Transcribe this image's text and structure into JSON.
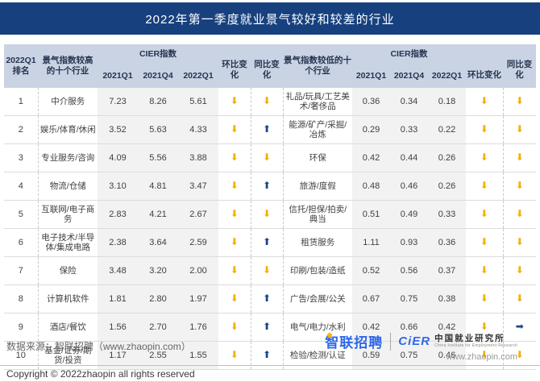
{
  "title": "2022年第一季度就业景气较好和较差的行业",
  "chart_data": {
    "type": "table",
    "title": "2022年第一季度就业景气较好和较差的行业",
    "columns": {
      "rank": "2022Q1排名",
      "high_group": "景气指数较高的十个行业",
      "low_group": "景气指数较低的十个行业",
      "cier": "CIER指数",
      "quarters": [
        "2021Q1",
        "2021Q4",
        "2022Q1"
      ],
      "qoq": "环比变化",
      "yoy": "同比变化"
    },
    "rows": [
      {
        "rank": "1",
        "high": {
          "industry": "中介服务",
          "values": [
            "7.23",
            "8.26",
            "5.61"
          ],
          "qoq": "down",
          "yoy": "down"
        },
        "low": {
          "industry": "礼品/玩具/工艺美术/奢侈品",
          "values": [
            "0.36",
            "0.34",
            "0.18"
          ],
          "qoq": "down",
          "yoy": "down"
        }
      },
      {
        "rank": "2",
        "high": {
          "industry": "娱乐/体育/休闲",
          "values": [
            "3.52",
            "5.63",
            "4.33"
          ],
          "qoq": "down",
          "yoy": "up"
        },
        "low": {
          "industry": "能源/矿产/采掘/冶炼",
          "values": [
            "0.29",
            "0.33",
            "0.22"
          ],
          "qoq": "down",
          "yoy": "down"
        }
      },
      {
        "rank": "3",
        "high": {
          "industry": "专业服务/咨询",
          "values": [
            "4.09",
            "5.56",
            "3.88"
          ],
          "qoq": "down",
          "yoy": "down"
        },
        "low": {
          "industry": "环保",
          "values": [
            "0.42",
            "0.44",
            "0.26"
          ],
          "qoq": "down",
          "yoy": "down"
        }
      },
      {
        "rank": "4",
        "high": {
          "industry": "物流/仓储",
          "values": [
            "3.10",
            "4.81",
            "3.47"
          ],
          "qoq": "down",
          "yoy": "up"
        },
        "low": {
          "industry": "旅游/度假",
          "values": [
            "0.48",
            "0.46",
            "0.26"
          ],
          "qoq": "down",
          "yoy": "down"
        }
      },
      {
        "rank": "5",
        "high": {
          "industry": "互联网/电子商务",
          "values": [
            "2.83",
            "4.21",
            "2.67"
          ],
          "qoq": "down",
          "yoy": "down"
        },
        "low": {
          "industry": "信托/担保/拍卖/典当",
          "values": [
            "0.51",
            "0.49",
            "0.33"
          ],
          "qoq": "down",
          "yoy": "down"
        }
      },
      {
        "rank": "6",
        "high": {
          "industry": "电子技术/半导体/集成电路",
          "values": [
            "2.38",
            "3.64",
            "2.59"
          ],
          "qoq": "down",
          "yoy": "up"
        },
        "low": {
          "industry": "租赁服务",
          "values": [
            "1.11",
            "0.93",
            "0.36"
          ],
          "qoq": "down",
          "yoy": "down"
        }
      },
      {
        "rank": "7",
        "high": {
          "industry": "保险",
          "values": [
            "3.48",
            "3.20",
            "2.00"
          ],
          "qoq": "down",
          "yoy": "down"
        },
        "low": {
          "industry": "印刷/包装/造纸",
          "values": [
            "0.52",
            "0.56",
            "0.37"
          ],
          "qoq": "down",
          "yoy": "down"
        }
      },
      {
        "rank": "8",
        "high": {
          "industry": "计算机软件",
          "values": [
            "1.81",
            "2.80",
            "1.97"
          ],
          "qoq": "down",
          "yoy": "up"
        },
        "low": {
          "industry": "广告/会展/公关",
          "values": [
            "0.67",
            "0.75",
            "0.38"
          ],
          "qoq": "down",
          "yoy": "down"
        }
      },
      {
        "rank": "9",
        "high": {
          "industry": "酒店/餐饮",
          "values": [
            "1.56",
            "2.70",
            "1.76"
          ],
          "qoq": "down",
          "yoy": "up"
        },
        "low": {
          "industry": "电气/电力/水利",
          "values": [
            "0.42",
            "0.66",
            "0.42"
          ],
          "qoq": "down",
          "yoy": "flat"
        }
      },
      {
        "rank": "10",
        "high": {
          "industry": "基金/证券/期货/投资",
          "values": [
            "1.17",
            "2.55",
            "1.55"
          ],
          "qoq": "down",
          "yoy": "up"
        },
        "low": {
          "industry": "检验/检测/认证",
          "values": [
            "0.59",
            "0.75",
            "0.46"
          ],
          "qoq": "down",
          "yoy": "down"
        }
      }
    ]
  },
  "arrows": {
    "glyphs": {
      "down": "⬇",
      "up": "⬆",
      "flat": "➡"
    }
  },
  "footer": {
    "source": "数据来源：智联招聘（www.zhaopin.com）",
    "zhaopin_logo": "智联招聘",
    "cier_logo": "CiER",
    "cier_cn": "中国就业研究所",
    "cier_en": "China Institute for Employment Research",
    "website": "www.zhaopin.com",
    "copyright": "Copyright © 2022zhaopin all rights reserved"
  },
  "colors": {
    "title_bg": "#17417E",
    "header_bg": "#C9D3E4",
    "value_col_bg": "#F2F2F2",
    "arrow_down": "#F0B100",
    "arrow_up": "#1C4587",
    "logo_blue": "#2E68E8"
  }
}
